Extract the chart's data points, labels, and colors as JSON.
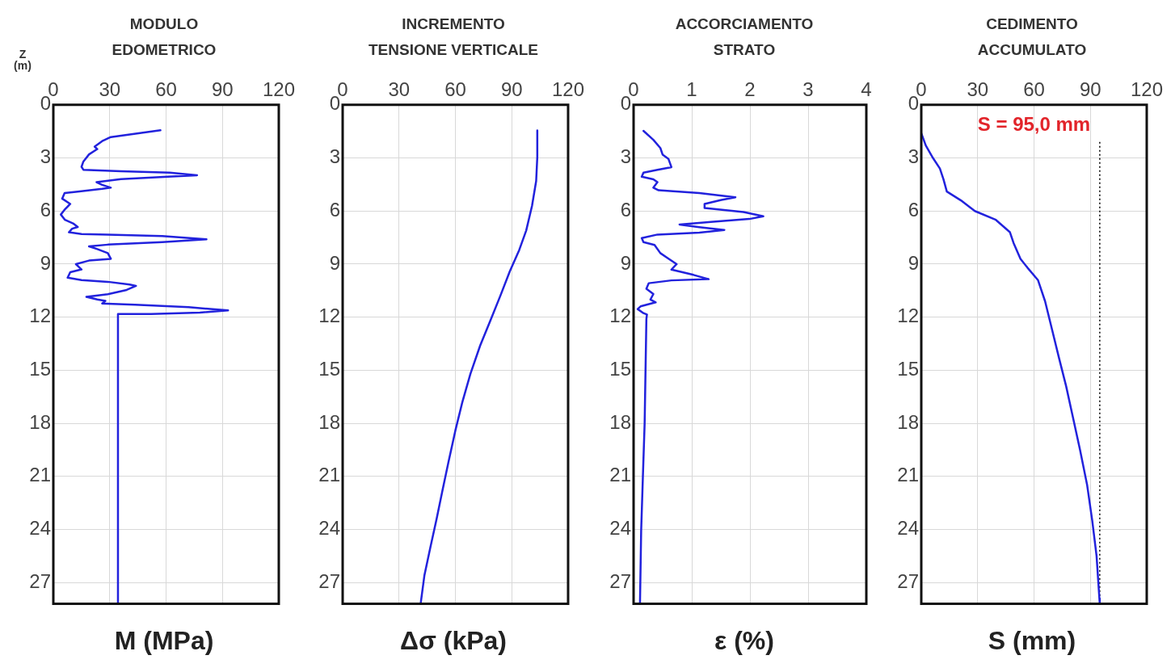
{
  "chart_data": [
    {
      "type": "line",
      "title": "MODULO\nEDOMETRICO",
      "xlabel": "M (MPa)",
      "ylabel": "Z\n(m)",
      "color": "#2222dd",
      "marker": "none",
      "line_style": "solid",
      "grid": true,
      "legend": false,
      "x": [
        57,
        36,
        30.6,
        26,
        22,
        23.4,
        19,
        16,
        15,
        16,
        36,
        62,
        76.5,
        61,
        36,
        23,
        26,
        30.6,
        26,
        13,
        6,
        4.7,
        9,
        6.2,
        4,
        6.2,
        10.5,
        13,
        10,
        8.3,
        15,
        29,
        58,
        81.5,
        58,
        29,
        19,
        23.4,
        29,
        30.6,
        19,
        12,
        15,
        9,
        7.6,
        15,
        29,
        40.6,
        44,
        39,
        29,
        17.6,
        23.4,
        27.7,
        26,
        43.5,
        72,
        93,
        78,
        52,
        34.4,
        34.4
      ],
      "values": [
        1.44,
        1.74,
        1.82,
        2.05,
        2.36,
        2.5,
        2.8,
        3.2,
        3.5,
        3.67,
        3.75,
        3.83,
        3.98,
        4.06,
        4.2,
        4.37,
        4.52,
        4.68,
        4.75,
        4.9,
        4.98,
        5.3,
        5.6,
        5.9,
        6.2,
        6.5,
        6.7,
        6.9,
        7.0,
        7.2,
        7.3,
        7.33,
        7.42,
        7.6,
        7.76,
        7.9,
        8.0,
        8.15,
        8.38,
        8.7,
        8.8,
        9.0,
        9.3,
        9.46,
        9.77,
        9.9,
        10.0,
        10.15,
        10.23,
        10.46,
        10.7,
        10.85,
        11.0,
        11.08,
        11.23,
        11.3,
        11.43,
        11.62,
        11.74,
        11.82,
        11.82,
        28.2
      ],
      "xlim": [
        0,
        120
      ],
      "xticks": [
        0,
        30,
        60,
        90,
        120
      ],
      "ylim": [
        28.2,
        0
      ],
      "yticks": [
        0,
        3,
        6,
        9,
        12,
        15,
        18,
        21,
        24,
        27
      ]
    },
    {
      "type": "line",
      "title": "INCREMENTO\nTENSIONE VERTICALE",
      "xlabel": "Δσ (kPa)",
      "color": "#2222dd",
      "marker": "none",
      "line_style": "solid",
      "grid": true,
      "legend": false,
      "x": [
        103.6,
        103.6,
        103,
        100.8,
        97.7,
        94,
        89,
        83.9,
        78.6,
        73.2,
        68,
        63.7,
        60,
        56.3,
        53.1,
        50,
        46.7,
        43.5,
        41.5
      ],
      "values": [
        1.45,
        2.95,
        4.3,
        5.7,
        7.1,
        8.2,
        9.4,
        10.8,
        12.2,
        13.6,
        15.2,
        16.8,
        18.4,
        20.2,
        21.8,
        23.4,
        25.0,
        26.6,
        28.2
      ],
      "xlim": [
        0,
        120
      ],
      "xticks": [
        0,
        30,
        60,
        90,
        120
      ],
      "ylim": [
        28.2,
        0
      ],
      "yticks": [
        0,
        3,
        6,
        9,
        12,
        15,
        18,
        21,
        24,
        27
      ]
    },
    {
      "type": "line",
      "title": "ACCORCIAMENTO\nSTRATO",
      "xlabel": "ε (%)",
      "color": "#2222dd",
      "marker": "none",
      "line_style": "solid",
      "grid": true,
      "legend": false,
      "x": [
        0.17,
        0.34,
        0.46,
        0.5,
        0.6,
        0.65,
        0.41,
        0.17,
        0.14,
        0.34,
        0.41,
        0.34,
        0.43,
        1.13,
        1.75,
        1.51,
        1.22,
        1.22,
        1.89,
        2.23,
        1.99,
        1.37,
        0.79,
        1.13,
        1.56,
        1.13,
        0.41,
        0.14,
        0.17,
        0.36,
        0.46,
        0.6,
        0.74,
        0.65,
        1.03,
        1.29,
        0.65,
        0.26,
        0.22,
        0.34,
        0.29,
        0.38,
        0.12,
        0.07,
        0.17,
        0.23,
        0.22,
        0.19,
        0.16,
        0.13,
        0.11
      ],
      "values": [
        1.47,
        1.98,
        2.44,
        2.82,
        3.06,
        3.52,
        3.67,
        3.83,
        4.06,
        4.21,
        4.37,
        4.68,
        4.83,
        4.98,
        5.22,
        5.37,
        5.6,
        5.83,
        6.06,
        6.3,
        6.45,
        6.6,
        6.76,
        6.91,
        7.07,
        7.22,
        7.33,
        7.53,
        7.76,
        7.92,
        8.38,
        8.69,
        9.0,
        9.31,
        9.61,
        9.85,
        9.92,
        10.08,
        10.39,
        10.69,
        11.0,
        11.16,
        11.39,
        11.54,
        11.77,
        11.85,
        12.1,
        18.0,
        21.0,
        24.1,
        28.2
      ],
      "xlim": [
        0,
        4
      ],
      "xticks": [
        0,
        1,
        2,
        3,
        4
      ],
      "ylim": [
        28.2,
        0
      ],
      "yticks": [
        0,
        3,
        6,
        9,
        12,
        15,
        18,
        21,
        24,
        27
      ]
    },
    {
      "type": "line",
      "title": "CEDIMENTO\nACCUMULATO",
      "xlabel": "S (mm)",
      "color": "#2222dd",
      "marker": "none",
      "line_style": "solid",
      "grid": true,
      "legend": false,
      "x": [
        0,
        2.4,
        6.2,
        9.9,
        11.8,
        13.6,
        21.1,
        28.5,
        39.7,
        47.2,
        49.1,
        52.8,
        56.5,
        62.1,
        65.9,
        69.6,
        73.3,
        77.1,
        80.8,
        84.5,
        88.3,
        91,
        93.3,
        94.8,
        95
      ],
      "values": [
        1.6,
        2.3,
        3.0,
        3.6,
        4.2,
        4.9,
        5.4,
        6.0,
        6.5,
        7.2,
        7.8,
        8.7,
        9.2,
        9.9,
        11.1,
        12.7,
        14.3,
        15.9,
        17.7,
        19.5,
        21.5,
        23.5,
        25.5,
        27.9,
        28.2
      ],
      "xlim": [
        0,
        120
      ],
      "xticks": [
        0,
        30,
        60,
        90,
        120
      ],
      "ylim": [
        28.2,
        0
      ],
      "yticks": [
        0,
        3,
        6,
        9,
        12,
        15,
        18,
        21,
        24,
        27
      ],
      "ref_lines": [
        {
          "axis": "x",
          "value": 95,
          "color": "#000000",
          "line_style": "dotted"
        }
      ],
      "annotations": [
        "S = 95,0 mm"
      ]
    }
  ]
}
